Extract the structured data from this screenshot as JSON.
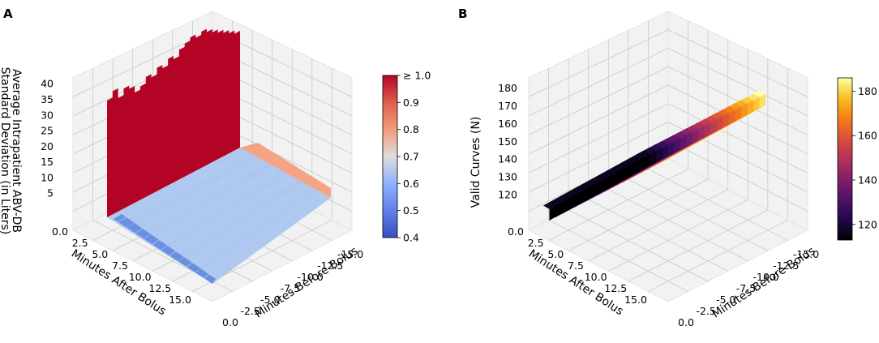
{
  "chart_data": [
    {
      "panel": "A",
      "type": "surface3d",
      "xlabel": "Minutes After Bolus",
      "ylabel": "Minutes Before Bolus",
      "zlabel": "Average Intrapatient ABV-DB\nStandard Deviation (in Liters)",
      "x_ticks": [
        "0.0",
        "2.5",
        "5.0",
        "7.5",
        "10.0",
        "12.5",
        "15.0"
      ],
      "y_ticks": [
        "0.0",
        "-2.5",
        "-5.0",
        "-7.5",
        "-10.0",
        "-12.5",
        "-15.0"
      ],
      "z_ticks": [
        "5",
        "10",
        "15",
        "20",
        "25",
        "30",
        "35",
        "40"
      ],
      "xlim": [
        0,
        15
      ],
      "ylim": [
        0,
        -15
      ],
      "zlim": [
        0,
        42
      ],
      "colormap": "coolwarm",
      "colorbar": {
        "min": 0.4,
        "max": 1.0,
        "ticks": [
          "0.4",
          "0.5",
          "0.6",
          "0.7",
          "0.8",
          "0.9",
          "≥ 1.0"
        ]
      },
      "wall_heights_at_x0": [
        36,
        38,
        35,
        37,
        36,
        34,
        35,
        37,
        36,
        38,
        37,
        39,
        38,
        40,
        41,
        42,
        41,
        42,
        41,
        40,
        39,
        38,
        37,
        36
      ],
      "colors": {
        "wall": "#b40426",
        "high_ridge": "#f4a384",
        "low_region": "#aec8f0",
        "lowest": "#6b8fe0"
      }
    },
    {
      "panel": "B",
      "type": "surface3d",
      "xlabel": "Minutes After Bolus",
      "ylabel": "Minutes Before Bolus",
      "zlabel": "Valid Curves (N)",
      "x_ticks": [
        "0.0",
        "2.5",
        "5.0",
        "7.5",
        "10.0",
        "12.5",
        "15.0"
      ],
      "y_ticks": [
        "0.0",
        "-2.5",
        "-5.0",
        "-7.5",
        "-10.0",
        "-12.5",
        "-15.0"
      ],
      "z_ticks": [
        "120",
        "130",
        "140",
        "150",
        "160",
        "170",
        "180"
      ],
      "xlim": [
        0,
        15
      ],
      "ylim": [
        0,
        -15
      ],
      "zlim": [
        112,
        186
      ],
      "colormap": "inferno",
      "colorbar": {
        "min": 113,
        "max": 186,
        "ticks": [
          "120",
          "140",
          "160",
          "180"
        ]
      },
      "value_range": [
        113,
        186
      ]
    }
  ]
}
